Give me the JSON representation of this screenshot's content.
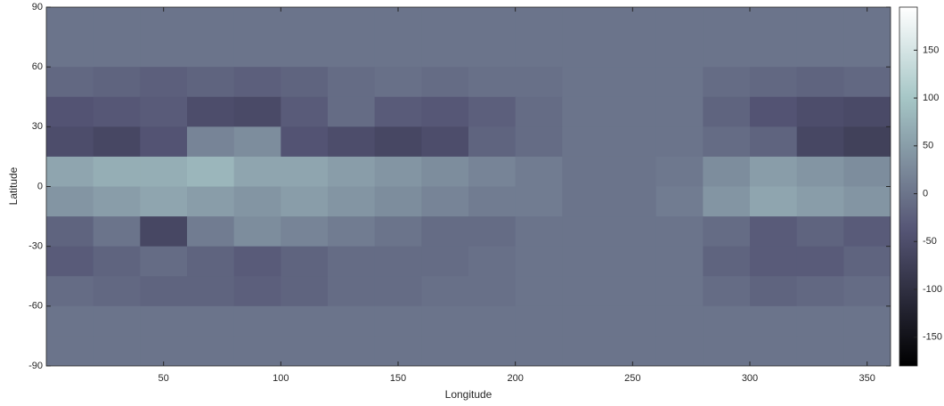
{
  "chart_data": {
    "type": "heatmap",
    "xlabel": "Longitude",
    "ylabel": "Latitude",
    "x": [
      10,
      30,
      50,
      70,
      90,
      110,
      130,
      150,
      170,
      190,
      210,
      230,
      250,
      270,
      290,
      310,
      330,
      350
    ],
    "y": [
      82.5,
      67.5,
      52.5,
      37.5,
      22.5,
      7.5,
      -7.5,
      -22.5,
      -37.5,
      -52.5,
      -67.5,
      -82.5
    ],
    "z": [
      [
        0,
        0,
        0,
        0,
        0,
        0,
        0,
        0,
        0,
        0,
        0,
        0,
        0,
        0,
        0,
        0,
        0,
        0
      ],
      [
        0,
        0,
        0,
        0,
        0,
        0,
        0,
        0,
        0,
        0,
        0,
        0,
        0,
        0,
        0,
        0,
        0,
        0
      ],
      [
        -15,
        -20,
        -25,
        -20,
        -25,
        -20,
        -10,
        -5,
        -10,
        -5,
        -5,
        0,
        0,
        0,
        -10,
        -15,
        -20,
        -15
      ],
      [
        -40,
        -35,
        -30,
        -50,
        -55,
        -30,
        -10,
        -30,
        -35,
        -25,
        -10,
        0,
        0,
        0,
        -20,
        -40,
        -50,
        -55
      ],
      [
        -50,
        -60,
        -40,
        20,
        30,
        -40,
        -50,
        -60,
        -50,
        -20,
        -10,
        0,
        0,
        0,
        -10,
        -20,
        -60,
        -70
      ],
      [
        60,
        70,
        70,
        80,
        60,
        60,
        50,
        40,
        30,
        20,
        10,
        0,
        0,
        5,
        30,
        50,
        40,
        30
      ],
      [
        40,
        50,
        60,
        50,
        40,
        50,
        40,
        30,
        20,
        10,
        10,
        0,
        0,
        10,
        40,
        60,
        50,
        40
      ],
      [
        -20,
        0,
        -60,
        10,
        30,
        20,
        10,
        0,
        -10,
        -10,
        0,
        0,
        0,
        0,
        -10,
        -30,
        -20,
        -30
      ],
      [
        -30,
        -20,
        -10,
        -20,
        -30,
        -20,
        -10,
        -10,
        -10,
        -5,
        0,
        0,
        0,
        0,
        -20,
        -30,
        -30,
        -20
      ],
      [
        -10,
        -15,
        -20,
        -20,
        -25,
        -20,
        -10,
        -10,
        -5,
        -5,
        0,
        0,
        0,
        0,
        -10,
        -20,
        -15,
        -10
      ],
      [
        0,
        0,
        0,
        0,
        0,
        0,
        0,
        0,
        0,
        0,
        0,
        0,
        0,
        0,
        0,
        0,
        0,
        0
      ],
      [
        0,
        0,
        0,
        0,
        0,
        0,
        0,
        0,
        0,
        0,
        0,
        0,
        0,
        0,
        0,
        0,
        0,
        0
      ]
    ],
    "xlim": [
      0,
      360
    ],
    "ylim": [
      -90,
      90
    ],
    "xticks": [
      50,
      100,
      150,
      200,
      250,
      300,
      350
    ],
    "yticks": [
      -90,
      -60,
      -30,
      0,
      30,
      60,
      90
    ],
    "colormap": "bone",
    "clim": [
      -180,
      195
    ],
    "colorbar_ticks": [
      -150,
      -100,
      -50,
      0,
      50,
      100,
      150
    ]
  }
}
